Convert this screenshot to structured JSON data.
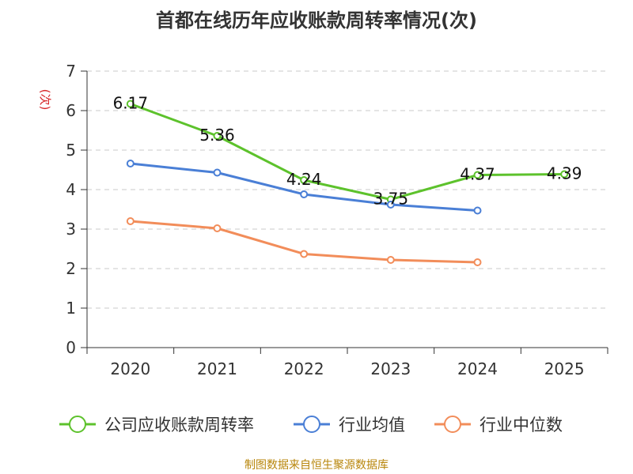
{
  "chart_data": {
    "type": "line",
    "title": "首都在线历年应收账款周转率情况(次)",
    "ylabel": "(次)",
    "xlabel": "",
    "categories": [
      "2020",
      "2021",
      "2022",
      "2023",
      "2024",
      "2025"
    ],
    "ylim": [
      0,
      7
    ],
    "yticks": [
      "0",
      "1",
      "2",
      "3",
      "4",
      "5",
      "6",
      "7"
    ],
    "grid": true,
    "legend_position": "bottom",
    "series": [
      {
        "name": "公司应收账款周转率",
        "color": "#5dc22c",
        "values": [
          6.17,
          5.36,
          4.24,
          3.75,
          4.37,
          4.39
        ],
        "labels": [
          "6.17",
          "5.36",
          "4.24",
          "3.75",
          "4.37",
          "4.39"
        ]
      },
      {
        "name": "行业均值",
        "color": "#4a7fd6",
        "values": [
          4.66,
          4.43,
          3.88,
          3.62,
          3.47,
          null
        ],
        "labels": []
      },
      {
        "name": "行业中位数",
        "color": "#f28d5a",
        "values": [
          3.2,
          3.02,
          2.37,
          2.22,
          2.16,
          null
        ],
        "labels": []
      }
    ],
    "source": "制图数据来自恒生聚源数据库"
  }
}
